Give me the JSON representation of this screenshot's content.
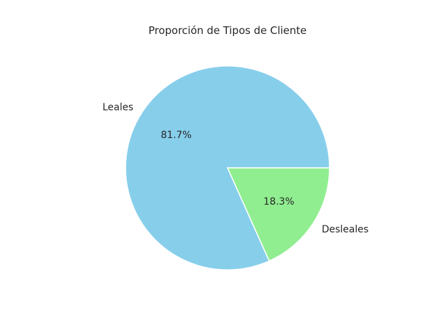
{
  "chart_data": {
    "type": "pie",
    "title": "Proporción de Tipos de Cliente",
    "labels": [
      "Leales",
      "Desleales"
    ],
    "values": [
      81.7,
      18.3
    ],
    "percent_labels": [
      "81.7%",
      "18.3%"
    ],
    "colors": [
      "#87CEEB",
      "#90EE90"
    ],
    "start_angle_deg": 0,
    "direction": "counterclockwise"
  }
}
